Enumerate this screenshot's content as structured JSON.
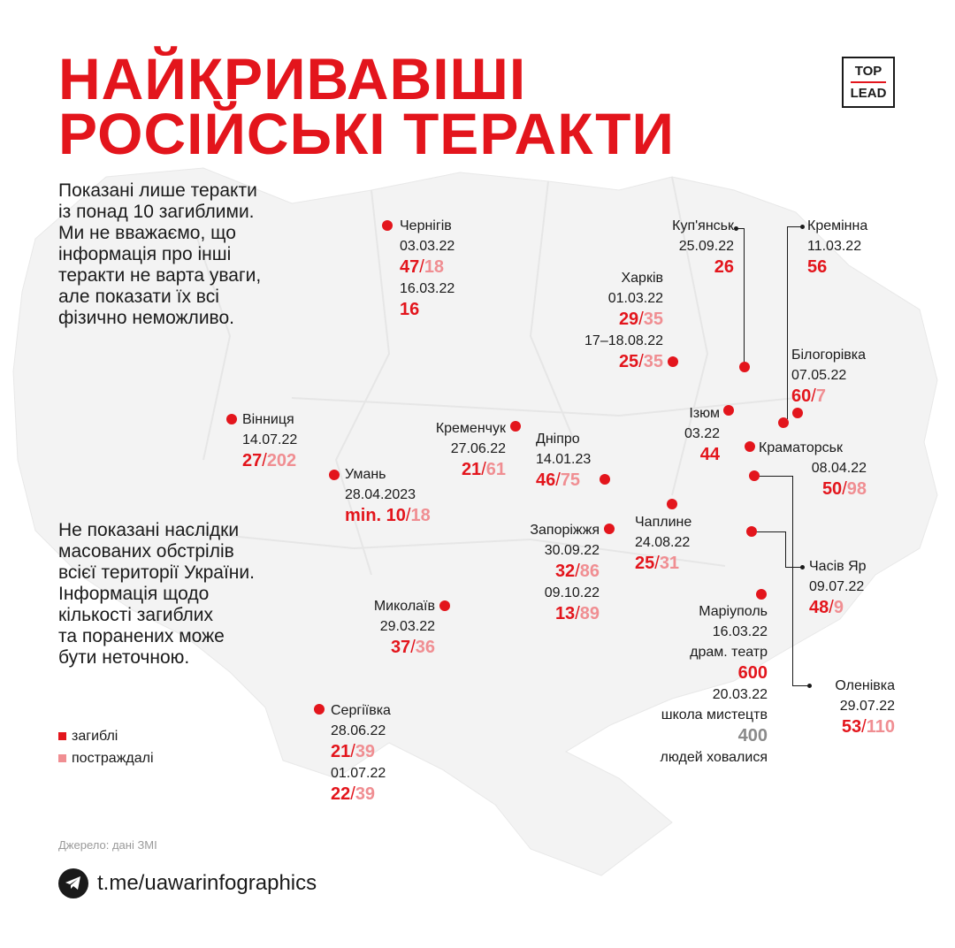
{
  "title": {
    "line1": "НАЙКРИВАВІШІ",
    "line2": "РОСІЙСЬКІ ТЕРАКТИ"
  },
  "logo": {
    "top": "TOP",
    "bottom": "LEAD"
  },
  "intro_text": [
    "Показані лише теракти",
    "із понад 10 загиблими.",
    "Ми не вважаємо, що",
    "інформація про інші",
    "теракти не варта уваги,",
    "але показати їх всі",
    "фізично неможливо."
  ],
  "note_text": [
    "Не показані наслідки",
    "масованих обстрілів",
    "всієї території України.",
    "Інформація щодо",
    "кількості загиблих",
    "та поранених може",
    "бути неточною."
  ],
  "legend": {
    "killed": "загиблі",
    "injured": "постраждалі",
    "killed_color": "#e3151c",
    "injured_color": "#f08e92"
  },
  "source": "Джерело: дані ЗМІ",
  "telegram": {
    "icon": "telegram-icon",
    "link": "t.me/uawarinfographics"
  },
  "events": {
    "chernihiv": {
      "city": "Чернігів",
      "date1": "03.03.22",
      "killed1": "47",
      "injured1": "18",
      "date2": "16.03.22",
      "killed2": "16"
    },
    "kupiansk": {
      "city": "Куп'янськ",
      "date": "25.09.22",
      "killed": "26"
    },
    "kreminna": {
      "city": "Кремінна",
      "date": "11.03.22",
      "killed": "56"
    },
    "kharkiv": {
      "city": "Харків",
      "date1": "01.03.22",
      "killed1": "29",
      "injured1": "35",
      "date2": "17–18.08.22",
      "killed2": "25",
      "injured2": "35"
    },
    "bilohorivka": {
      "city": "Білогорівка",
      "date": "07.05.22",
      "killed": "60",
      "injured": "7"
    },
    "izium": {
      "city": "Ізюм",
      "date": "03.22",
      "killed": "44"
    },
    "kramatorsk": {
      "city": "Краматорськ",
      "date": "08.04.22",
      "killed": "50",
      "injured": "98"
    },
    "vinnytsia": {
      "city": "Вінниця",
      "date": "14.07.22",
      "killed": "27",
      "injured": "202"
    },
    "kremenchuk": {
      "city": "Кременчук",
      "date": "27.06.22",
      "killed": "21",
      "injured": "61"
    },
    "dnipro": {
      "city": "Дніпро",
      "date": "14.01.23",
      "killed": "46",
      "injured": "75"
    },
    "uman": {
      "city": "Умань",
      "date": "28.04.2023",
      "killed": "min. 10",
      "injured": "18"
    },
    "zaporizhzhia": {
      "city": "Запоріжжя",
      "date1": "30.09.22",
      "killed1": "32",
      "injured1": "86",
      "date2": "09.10.22",
      "killed2": "13",
      "injured2": "89"
    },
    "chapline": {
      "city": "Чаплине",
      "date": "24.08.22",
      "killed": "25",
      "injured": "31"
    },
    "chasiv_yar": {
      "city": "Часів Яр",
      "date": "09.07.22",
      "killed": "48",
      "injured": "9"
    },
    "mykolaiv": {
      "city": "Миколаїв",
      "date": "29.03.22",
      "killed": "37",
      "injured": "36"
    },
    "mariupol": {
      "city": "Маріуполь",
      "date1": "16.03.22",
      "place1": "драм. театр",
      "killed1": "600",
      "date2": "20.03.22",
      "place2": "школа мистецтв",
      "sheltered": "400",
      "sheltered_note": "людей ховалися"
    },
    "olenivka": {
      "city": "Оленівка",
      "date": "29.07.22",
      "killed": "53",
      "injured": "110"
    },
    "serhiivka": {
      "city": "Сергіївка",
      "date1": "28.06.22",
      "killed1": "21",
      "injured1": "39",
      "date2": "01.07.22",
      "killed2": "22",
      "injured2": "39"
    }
  },
  "slash": "/"
}
